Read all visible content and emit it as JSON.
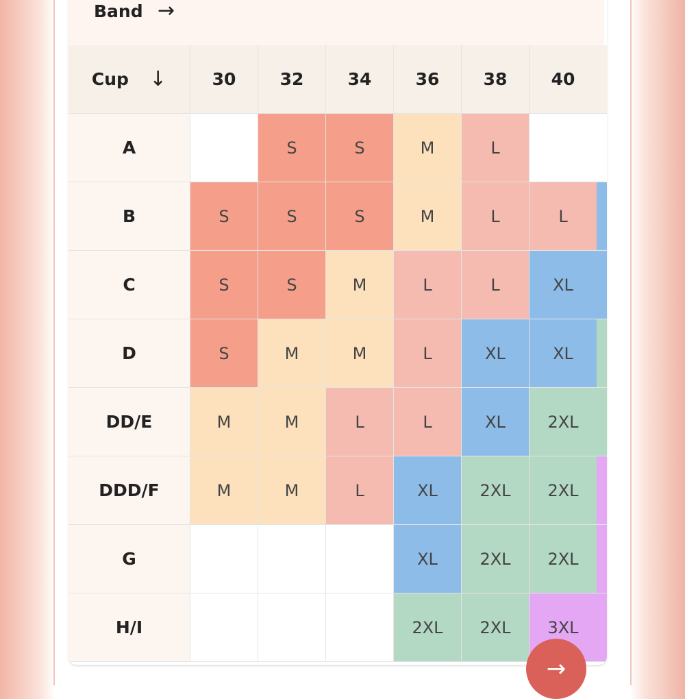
{
  "header": {
    "band_label": "Band"
  },
  "table": {
    "corner_label": "Cup",
    "columns": [
      "30",
      "32",
      "34",
      "36",
      "38",
      "40"
    ],
    "rows": [
      {
        "cup": "A",
        "cells": [
          null,
          "S",
          "S",
          "M",
          "L",
          null
        ]
      },
      {
        "cup": "B",
        "cells": [
          "S",
          "S",
          "S",
          "M",
          "L",
          "L"
        ]
      },
      {
        "cup": "C",
        "cells": [
          "S",
          "S",
          "M",
          "L",
          "L",
          "XL"
        ]
      },
      {
        "cup": "D",
        "cells": [
          "S",
          "M",
          "M",
          "L",
          "XL",
          "XL"
        ]
      },
      {
        "cup": "DD/E",
        "cells": [
          "M",
          "M",
          "L",
          "L",
          "XL",
          "2XL"
        ]
      },
      {
        "cup": "DDD/F",
        "cells": [
          "M",
          "M",
          "L",
          "XL",
          "2XL",
          "2XL"
        ]
      },
      {
        "cup": "G",
        "cells": [
          null,
          null,
          null,
          "XL",
          "2XL",
          "2XL"
        ]
      },
      {
        "cup": "H/I",
        "cells": [
          null,
          null,
          null,
          "2XL",
          "2XL",
          "3XL"
        ]
      }
    ],
    "size_colors": {
      "S": "#f59f8a",
      "M": "#fde1bc",
      "L": "#f5bab0",
      "XL": "#8ebce9",
      "2XL": "#b3d8c4",
      "3XL": "#e3a7f4"
    }
  }
}
